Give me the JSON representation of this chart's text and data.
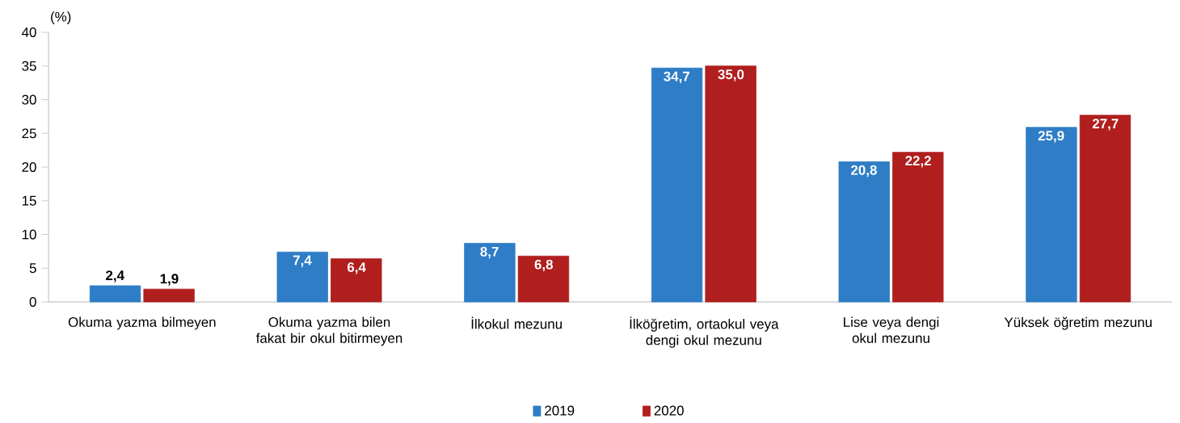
{
  "chart_data": {
    "type": "bar",
    "ylabel": "(%)",
    "categories": [
      "Okuma yazma bilmeyen",
      "Okuma yazma bilen fakat bir okul bitirmeyen",
      "İlkokul mezunu",
      "İlköğretim, ortaokul veya dengi okul mezunu",
      "Lise veya dengi okul mezunu",
      "Yüksek öğretim mezunu"
    ],
    "series": [
      {
        "name": "2019",
        "color": "#2e7dc6",
        "values": [
          2.4,
          7.4,
          8.7,
          34.7,
          20.8,
          25.9
        ],
        "value_labels": [
          "2,4",
          "7,4",
          "8,7",
          "34,7",
          "20,8",
          "25,9"
        ]
      },
      {
        "name": "2020",
        "color": "#b01e1e",
        "values": [
          1.9,
          6.4,
          6.8,
          35.0,
          22.2,
          27.7
        ],
        "value_labels": [
          "1,9",
          "6,4",
          "6,8",
          "35,0",
          "22,2",
          "27,7"
        ]
      }
    ],
    "ylim": [
      0,
      40
    ],
    "yticks": [
      0,
      5,
      10,
      15,
      20,
      25,
      30,
      35,
      40
    ],
    "legend": "bottom"
  }
}
